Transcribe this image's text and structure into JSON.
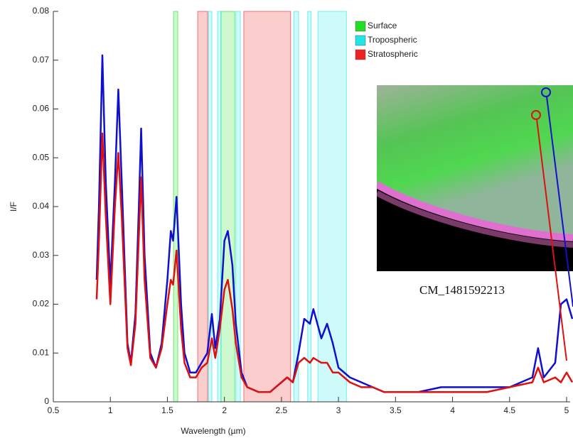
{
  "chart_data": {
    "type": "line",
    "xlabel": "Wavelength (µm)",
    "ylabel": "I/F",
    "caption": "CM_1481592213",
    "xlim": [
      0.5,
      5.0
    ],
    "ylim": [
      0,
      0.08
    ],
    "xticks": [
      0.5,
      1,
      1.5,
      2,
      2.5,
      3,
      3.5,
      4,
      4.5,
      5
    ],
    "yticks": [
      0,
      0.01,
      0.02,
      0.03,
      0.04,
      0.05,
      0.06,
      0.07,
      0.08
    ],
    "regions": [
      {
        "name": "Surface",
        "color": "#22dd22",
        "ranges": [
          [
            1.554,
            1.591
          ],
          [
            1.97,
            2.09
          ]
        ]
      },
      {
        "name": "Tropospheric",
        "color": "#22e6e6",
        "ranges": [
          [
            1.86,
            1.89
          ],
          [
            1.94,
            1.97
          ],
          [
            2.1,
            2.14
          ],
          [
            2.61,
            2.65
          ],
          [
            2.73,
            2.76
          ],
          [
            2.82,
            3.07
          ]
        ]
      },
      {
        "name": "Stratospheric",
        "color": "#ee2222",
        "ranges": [
          [
            1.766,
            1.853
          ],
          [
            2.17,
            2.58
          ]
        ]
      }
    ],
    "x": [
      0.88,
      0.9,
      0.93,
      0.96,
      1.0,
      1.04,
      1.07,
      1.1,
      1.15,
      1.18,
      1.22,
      1.25,
      1.27,
      1.3,
      1.35,
      1.4,
      1.45,
      1.5,
      1.53,
      1.55,
      1.58,
      1.62,
      1.65,
      1.7,
      1.75,
      1.8,
      1.85,
      1.89,
      1.92,
      1.96,
      2.0,
      2.03,
      2.07,
      2.1,
      2.15,
      2.2,
      2.3,
      2.4,
      2.5,
      2.55,
      2.6,
      2.65,
      2.7,
      2.75,
      2.78,
      2.85,
      2.9,
      2.95,
      3.0,
      3.1,
      3.2,
      3.3,
      3.4,
      3.5,
      3.7,
      3.9,
      4.1,
      4.3,
      4.5,
      4.7,
      4.75,
      4.8,
      4.9,
      4.95,
      5.0,
      5.05
    ],
    "series": [
      {
        "name": "blue",
        "color": "#1010cc",
        "values": [
          0.025,
          0.04,
          0.071,
          0.045,
          0.024,
          0.045,
          0.064,
          0.045,
          0.012,
          0.008,
          0.018,
          0.04,
          0.056,
          0.03,
          0.01,
          0.007,
          0.012,
          0.025,
          0.035,
          0.033,
          0.042,
          0.02,
          0.01,
          0.006,
          0.006,
          0.008,
          0.01,
          0.018,
          0.011,
          0.017,
          0.033,
          0.035,
          0.028,
          0.016,
          0.006,
          0.003,
          0.002,
          0.002,
          0.004,
          0.005,
          0.004,
          0.01,
          0.017,
          0.016,
          0.019,
          0.013,
          0.016,
          0.012,
          0.007,
          0.005,
          0.004,
          0.003,
          0.002,
          0.002,
          0.002,
          0.003,
          0.003,
          0.003,
          0.003,
          0.005,
          0.011,
          0.005,
          0.008,
          0.02,
          0.021,
          0.017
        ]
      },
      {
        "name": "red",
        "color": "#dd1111",
        "values": [
          0.021,
          0.033,
          0.055,
          0.038,
          0.02,
          0.04,
          0.051,
          0.038,
          0.011,
          0.0075,
          0.016,
          0.034,
          0.046,
          0.025,
          0.009,
          0.007,
          0.011,
          0.02,
          0.025,
          0.024,
          0.031,
          0.015,
          0.008,
          0.005,
          0.005,
          0.007,
          0.008,
          0.013,
          0.009,
          0.015,
          0.023,
          0.025,
          0.019,
          0.012,
          0.005,
          0.003,
          0.002,
          0.002,
          0.004,
          0.005,
          0.004,
          0.008,
          0.009,
          0.008,
          0.009,
          0.008,
          0.008,
          0.006,
          0.006,
          0.004,
          0.003,
          0.003,
          0.002,
          0.002,
          0.002,
          0.002,
          0.002,
          0.002,
          0.003,
          0.004,
          0.007,
          0.004,
          0.005,
          0.004,
          0.006,
          0.004
        ]
      }
    ]
  }
}
